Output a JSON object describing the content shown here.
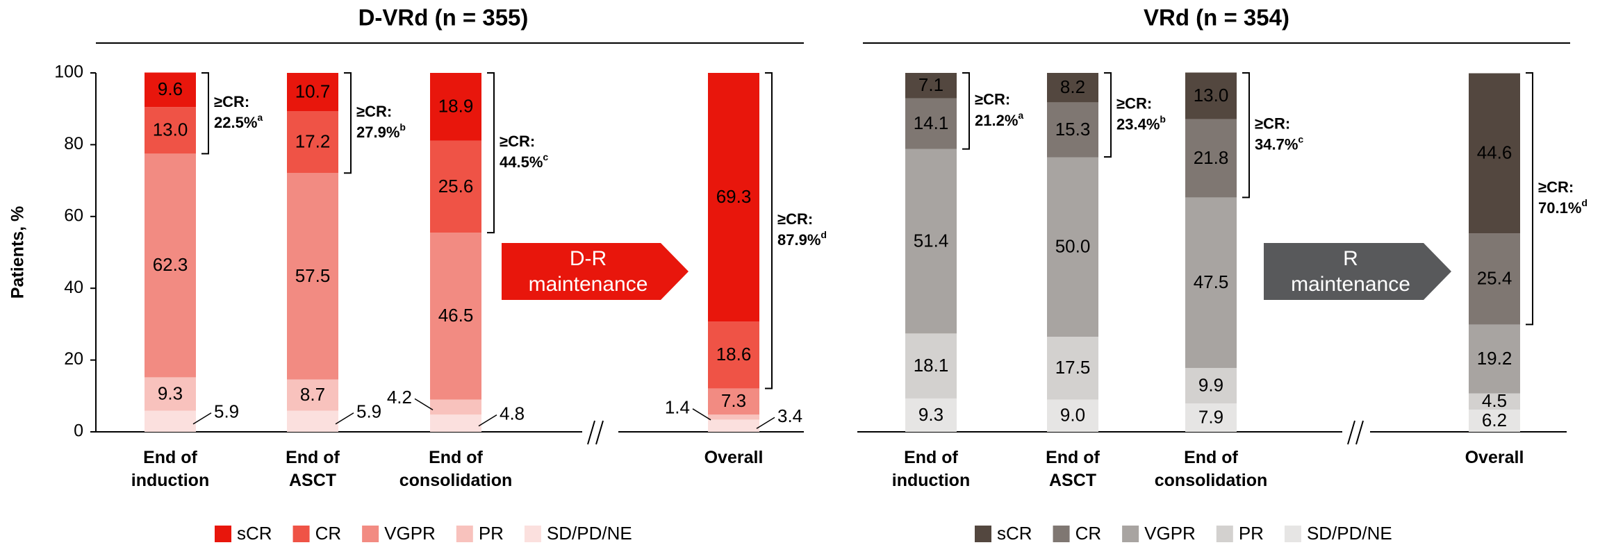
{
  "chart_data": [
    {
      "type": "bar",
      "stacked": true,
      "title": "D-VRd (n = 355)",
      "ylabel": "Patients, %",
      "categories": [
        "End of\ninduction",
        "End of\nASCT",
        "End of\nconsolidation",
        "Overall"
      ],
      "series": [
        {
          "name": "sCR",
          "color": "#e8160c",
          "values": [
            9.6,
            10.7,
            18.9,
            69.3
          ],
          "value_labels": [
            "9.6",
            "10.7",
            "18.9",
            "69.3"
          ]
        },
        {
          "name": "CR",
          "color": "#ef5346",
          "values": [
            13.0,
            17.2,
            25.6,
            18.6
          ],
          "value_labels": [
            "13.0",
            "17.2",
            "25.6",
            "18.6"
          ]
        },
        {
          "name": "VGPR",
          "color": "#f28b82",
          "values": [
            62.3,
            57.5,
            46.5,
            7.3
          ],
          "value_labels": [
            "62.3",
            "57.5",
            "46.5",
            "7.3"
          ]
        },
        {
          "name": "PR",
          "color": "#f8c2bd",
          "values": [
            9.3,
            8.7,
            4.2,
            1.4
          ],
          "value_labels": [
            "9.3",
            "8.7",
            "4.2",
            "1.4"
          ]
        },
        {
          "name": "SD/PD/NE",
          "color": "#fbe0de",
          "values": [
            5.9,
            5.9,
            4.8,
            3.4
          ],
          "value_labels": [
            "5.9",
            "5.9",
            "4.8",
            "3.4"
          ]
        }
      ],
      "ylim": [
        0,
        100
      ],
      "yticks": [
        0,
        20,
        40,
        60,
        80,
        100
      ],
      "annotations": [
        {
          "text": "≥CR:",
          "value": 22.5,
          "value_label": "22.5%",
          "note": "a"
        },
        {
          "text": "≥CR:",
          "value": 27.9,
          "value_label": "27.9%",
          "note": "b"
        },
        {
          "text": "≥CR:",
          "value": 44.5,
          "value_label": "44.5%",
          "note": "c"
        },
        {
          "text": "≥CR:",
          "value": 87.9,
          "value_label": "87.9%",
          "note": "d"
        }
      ],
      "arrow": {
        "text": "D-R\nmaintenance",
        "color": "#e8160c"
      }
    },
    {
      "type": "bar",
      "stacked": true,
      "title": "VRd (n = 354)",
      "categories": [
        "End of\ninduction",
        "End of\nASCT",
        "End of\nconsolidation",
        "Overall"
      ],
      "series": [
        {
          "name": "sCR",
          "color": "#53473f",
          "values": [
            7.1,
            8.2,
            13.0,
            44.6
          ],
          "value_labels": [
            "7.1",
            "8.2",
            "13.0",
            "44.6"
          ]
        },
        {
          "name": "CR",
          "color": "#7f7772",
          "values": [
            14.1,
            15.3,
            21.8,
            25.4
          ],
          "value_labels": [
            "14.1",
            "15.3",
            "21.8",
            "25.4"
          ]
        },
        {
          "name": "VGPR",
          "color": "#a8a4a1",
          "values": [
            51.4,
            50.0,
            47.5,
            19.2
          ],
          "value_labels": [
            "51.4",
            "50.0",
            "47.5",
            "19.2"
          ]
        },
        {
          "name": "PR",
          "color": "#d3d1cf",
          "values": [
            18.1,
            17.5,
            9.9,
            4.5
          ],
          "value_labels": [
            "18.1",
            "17.5",
            "9.9",
            "4.5"
          ]
        },
        {
          "name": "SD/PD/NE",
          "color": "#e6e5e4",
          "values": [
            9.3,
            9.0,
            7.9,
            6.2
          ],
          "value_labels": [
            "9.3",
            "9.0",
            "7.9",
            "6.2"
          ]
        }
      ],
      "ylim": [
        0,
        100
      ],
      "annotations": [
        {
          "text": "≥CR:",
          "value": 21.2,
          "value_label": "21.2%",
          "note": "a"
        },
        {
          "text": "≥CR:",
          "value": 23.4,
          "value_label": "23.4%",
          "note": "b"
        },
        {
          "text": "≥CR:",
          "value": 34.7,
          "value_label": "34.7%",
          "note": "c"
        },
        {
          "text": "≥CR:",
          "value": 70.1,
          "value_label": "70.1%",
          "note": "d"
        }
      ],
      "arrow": {
        "text": "R\nmaintenance",
        "color": "#58595b"
      }
    }
  ]
}
